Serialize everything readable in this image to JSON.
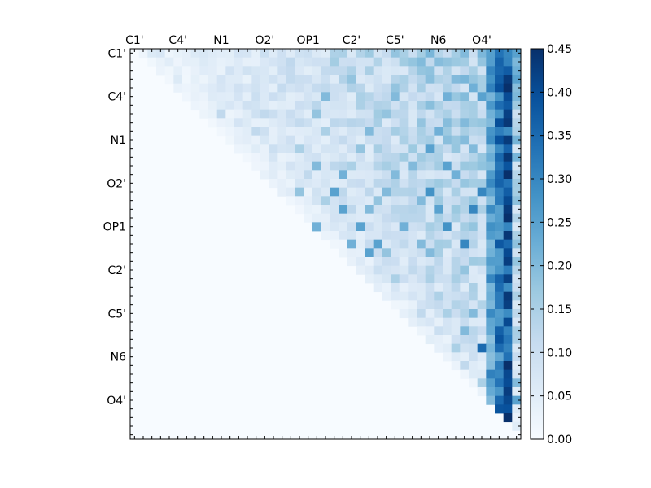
{
  "chart_data": {
    "type": "heatmap",
    "title": "",
    "xlabel": "",
    "ylabel": "",
    "n": 45,
    "triangle": "upper",
    "axis_tick_labels": [
      "C1'",
      "C4'",
      "N1",
      "O2'",
      "OP1",
      "C2'",
      "C5'",
      "N6",
      "O4'"
    ],
    "axis_tick_indices": [
      0,
      5,
      10,
      15,
      20,
      25,
      30,
      35,
      40
    ],
    "colorbar": {
      "min": 0.0,
      "max": 0.45,
      "ticks": [
        0.0,
        0.05,
        0.1,
        0.15,
        0.2,
        0.25,
        0.3,
        0.35,
        0.4,
        0.45
      ],
      "tick_labels": [
        "0.00",
        "0.05",
        "0.10",
        "0.15",
        "0.20",
        "0.25",
        "0.30",
        "0.35",
        "0.40",
        "0.45"
      ],
      "colormap": [
        "#f7fbff",
        "#deebf7",
        "#c6dbef",
        "#9ecae1",
        "#6baed6",
        "#4292c6",
        "#2171b5",
        "#08519c",
        "#08306b"
      ]
    },
    "strong_columns": [
      {
        "col": 42,
        "value": 0.32
      },
      {
        "col": 43,
        "value": 0.38
      },
      {
        "col": 41,
        "value": 0.25
      }
    ],
    "cells": [
      [
        0,
        2,
        0.06
      ],
      [
        0,
        3,
        0.07
      ],
      [
        0,
        7,
        0.06
      ],
      [
        0,
        15,
        0.1
      ],
      [
        0,
        20,
        0.1
      ],
      [
        0,
        24,
        0.15
      ],
      [
        0,
        26,
        0.14
      ],
      [
        0,
        30,
        0.18
      ],
      [
        0,
        33,
        0.16
      ],
      [
        0,
        38,
        0.2
      ],
      [
        0,
        43,
        0.3
      ],
      [
        1,
        4,
        0.05
      ],
      [
        1,
        9,
        0.05
      ],
      [
        1,
        16,
        0.08
      ],
      [
        1,
        23,
        0.16
      ],
      [
        1,
        28,
        0.14
      ],
      [
        1,
        34,
        0.12
      ],
      [
        1,
        40,
        0.18
      ],
      [
        3,
        5,
        0.06
      ],
      [
        3,
        10,
        0.08
      ],
      [
        3,
        22,
        0.1
      ],
      [
        3,
        25,
        0.18
      ],
      [
        3,
        31,
        0.15
      ],
      [
        3,
        37,
        0.2
      ],
      [
        5,
        14,
        0.1
      ],
      [
        5,
        22,
        0.2
      ],
      [
        5,
        26,
        0.15
      ],
      [
        5,
        30,
        0.2
      ],
      [
        5,
        36,
        0.22
      ],
      [
        5,
        40,
        0.25
      ],
      [
        7,
        10,
        0.12
      ],
      [
        7,
        15,
        0.12
      ],
      [
        7,
        21,
        0.18
      ],
      [
        7,
        29,
        0.18
      ],
      [
        7,
        36,
        0.15
      ],
      [
        8,
        12,
        0.08
      ],
      [
        8,
        20,
        0.1
      ],
      [
        8,
        24,
        0.12
      ],
      [
        8,
        33,
        0.18
      ],
      [
        8,
        38,
        0.2
      ],
      [
        9,
        14,
        0.12
      ],
      [
        9,
        22,
        0.15
      ],
      [
        9,
        27,
        0.2
      ],
      [
        9,
        35,
        0.22
      ],
      [
        11,
        16,
        0.1
      ],
      [
        11,
        19,
        0.15
      ],
      [
        11,
        26,
        0.18
      ],
      [
        11,
        34,
        0.25
      ],
      [
        11,
        39,
        0.2
      ],
      [
        13,
        21,
        0.2
      ],
      [
        13,
        25,
        0.15
      ],
      [
        13,
        32,
        0.2
      ],
      [
        13,
        36,
        0.25
      ],
      [
        14,
        20,
        0.12
      ],
      [
        14,
        24,
        0.22
      ],
      [
        14,
        30,
        0.2
      ],
      [
        14,
        37,
        0.22
      ],
      [
        16,
        19,
        0.18
      ],
      [
        16,
        23,
        0.25
      ],
      [
        16,
        29,
        0.2
      ],
      [
        16,
        34,
        0.28
      ],
      [
        16,
        40,
        0.3
      ],
      [
        17,
        22,
        0.15
      ],
      [
        17,
        28,
        0.18
      ],
      [
        17,
        33,
        0.2
      ],
      [
        18,
        24,
        0.25
      ],
      [
        18,
        27,
        0.2
      ],
      [
        18,
        35,
        0.25
      ],
      [
        18,
        39,
        0.3
      ],
      [
        20,
        21,
        0.22
      ],
      [
        20,
        26,
        0.25
      ],
      [
        20,
        31,
        0.22
      ],
      [
        20,
        36,
        0.28
      ],
      [
        22,
        25,
        0.22
      ],
      [
        22,
        28,
        0.25
      ],
      [
        22,
        33,
        0.2
      ],
      [
        22,
        38,
        0.3
      ],
      [
        23,
        27,
        0.25
      ],
      [
        23,
        29,
        0.18
      ],
      [
        23,
        34,
        0.2
      ],
      [
        25,
        28,
        0.1
      ],
      [
        25,
        32,
        0.12
      ],
      [
        25,
        38,
        0.18
      ],
      [
        26,
        30,
        0.15
      ],
      [
        26,
        35,
        0.1
      ],
      [
        28,
        32,
        0.08
      ],
      [
        28,
        37,
        0.1
      ],
      [
        30,
        33,
        0.12
      ],
      [
        30,
        36,
        0.15
      ],
      [
        30,
        39,
        0.2
      ],
      [
        32,
        35,
        0.1
      ],
      [
        32,
        38,
        0.2
      ],
      [
        34,
        37,
        0.15
      ],
      [
        34,
        40,
        0.35
      ],
      [
        36,
        38,
        0.12
      ],
      [
        36,
        41,
        0.2
      ],
      [
        38,
        40,
        0.15
      ],
      [
        38,
        44,
        0.2
      ],
      [
        40,
        41,
        0.2
      ],
      [
        40,
        44,
        0.25
      ],
      [
        43,
        44,
        0.05
      ]
    ]
  }
}
